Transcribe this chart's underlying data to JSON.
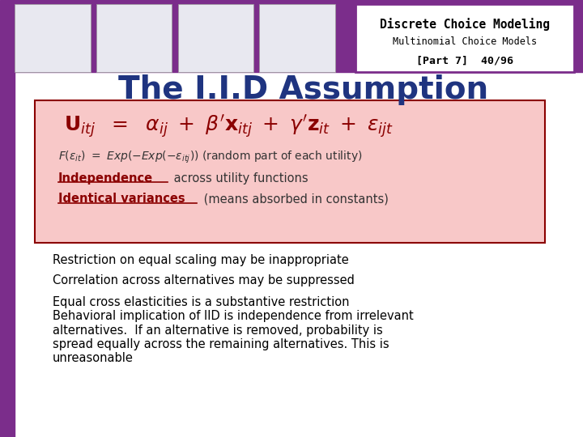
{
  "title": "The I.I.D Assumption",
  "title_color": "#1F3480",
  "title_fontsize": 28,
  "header_bg": "#7B2D8B",
  "header_text_line1": "Discrete Choice Modeling",
  "header_text_line2": "Multinomial Choice Models",
  "header_text_line3": "[Part 7]  40/96",
  "box_bg": "#F8C8C8",
  "box_border": "#8B0000",
  "formula_color": "#8B0000",
  "body_text_color": "#000000",
  "bullet_lines": [
    "Restriction on equal scaling may be inappropriate",
    "Correlation across alternatives may be suppressed",
    "Equal cross elasticities is a substantive restriction",
    "Behavioral implication of IID is independence from irrelevant\nalternatives.  If an alternative is removed, probability is\nspread equally across the remaining alternatives. This is\nunreasonable"
  ],
  "left_bar_color": "#7B2D8B",
  "bg_color": "#FFFFFF",
  "header_box_edge": "#7B2D8B"
}
